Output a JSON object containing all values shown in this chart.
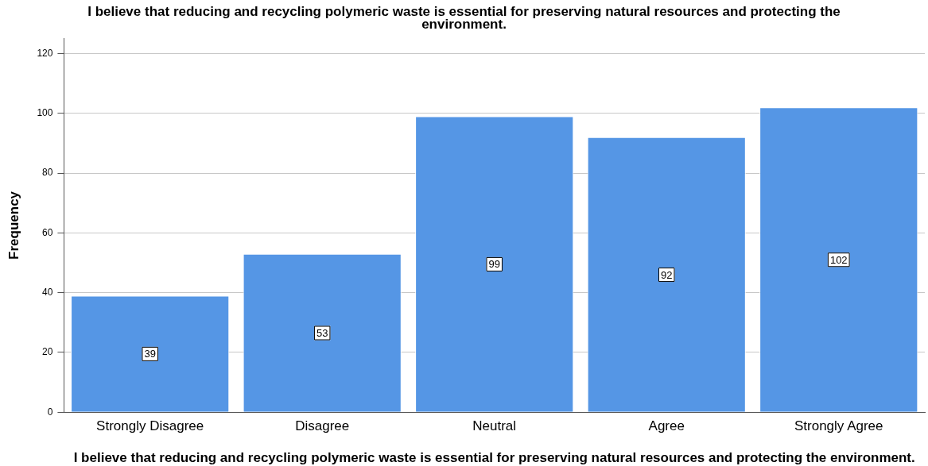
{
  "chart_data": {
    "type": "bar",
    "title": "I believe that reducing and recycling polymeric waste is essential for preserving natural resources and protecting the environment.",
    "xlabel": "I believe that reducing and recycling polymeric waste is essential for preserving natural resources and protecting the environment.",
    "ylabel": "Frequency",
    "categories": [
      "Strongly Disagree",
      "Disagree",
      "Neutral",
      "Agree",
      "Strongly Agree"
    ],
    "values": [
      39,
      53,
      99,
      92,
      102
    ],
    "color": "#5596e5",
    "ylim": [
      0,
      125
    ],
    "yticks": [
      0,
      20,
      40,
      60,
      80,
      100,
      120
    ],
    "grid": "y",
    "legend": false,
    "data_labels": true
  }
}
